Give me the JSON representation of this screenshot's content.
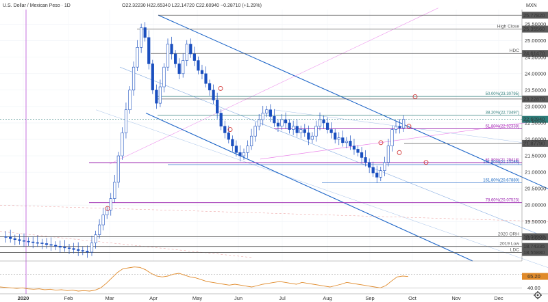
{
  "header": {
    "symbol": "U.S. Dollar / Mexican Peso · 1D",
    "ohlc": "O22.32230 H22.65340 L22.14720 C22.60940 −0.28710 (+1.29%)"
  },
  "chart_data": {
    "type": "candlestick",
    "currency": "MXN",
    "title": "U.S. Dollar / Mexican Peso · 1D",
    "ylim": [
      18.3,
      25.95
    ],
    "y_ticks": [
      19.0,
      19.5,
      20.0,
      20.5,
      21.0,
      21.5,
      22.0,
      22.5,
      23.0,
      23.5,
      24.0,
      24.5,
      25.0,
      25.5
    ],
    "x_labels": [
      "2020",
      "Feb",
      "Mar",
      "Apr",
      "May",
      "Jun",
      "Jul",
      "Aug",
      "Sep",
      "Oct",
      "Nov",
      "Dec"
    ],
    "last_price": "22.60940",
    "price_path": [
      19.04,
      19.03,
      18.98,
      18.95,
      18.92,
      18.9,
      18.88,
      18.86,
      18.85,
      18.83,
      18.8,
      18.78,
      18.75,
      18.72,
      18.7,
      18.68,
      18.65,
      18.62,
      18.6,
      18.57,
      18.85,
      19.1,
      19.4,
      19.7,
      19.85,
      20.2,
      20.7,
      21.5,
      22.2,
      22.9,
      23.5,
      24.2,
      24.8,
      25.4,
      25.1,
      24.3,
      23.5,
      23.1,
      23.6,
      24.2,
      24.9,
      24.6,
      24.3,
      24.0,
      24.4,
      24.9,
      24.6,
      24.4,
      24.1,
      24.0,
      23.7,
      23.5,
      23.2,
      22.8,
      22.4,
      22.2,
      22.0,
      21.8,
      21.6,
      21.5,
      21.6,
      21.8,
      22.1,
      22.4,
      22.6,
      22.8,
      22.9,
      22.7,
      22.5,
      22.4,
      22.6,
      22.5,
      22.3,
      22.4,
      22.2,
      22.3,
      22.2,
      22.0,
      22.1,
      22.4,
      22.6,
      22.5,
      22.3,
      22.2,
      22.0,
      22.05,
      21.9,
      21.95,
      21.8,
      21.7,
      21.6,
      21.45,
      21.3,
      21.15,
      20.98,
      20.85,
      21.05,
      21.3,
      21.8,
      22.3,
      22.4,
      22.35,
      22.61
    ],
    "levels": [
      {
        "value": 25.7782,
        "label": "25.77820"
      },
      {
        "value": 25.3556,
        "label": "25.35560",
        "note": "High Close"
      },
      {
        "value": 24.6147,
        "label": "24.61470",
        "note": "HDC"
      },
      {
        "value": 23.2287,
        "label": "23.22870"
      },
      {
        "value": 21.8779,
        "label": "21.87790"
      },
      {
        "value": 19.03903,
        "label": "19.03903",
        "note": "2020 ORH"
      },
      {
        "value": 18.74335,
        "label": "18.74335",
        "note": "2019 Low"
      },
      {
        "value": 18.5588,
        "label": "18.55880",
        "note": "LDC"
      }
    ],
    "fib_labels": [
      {
        "text": "50.00%(23.30795)",
        "value": 23.308,
        "color": "#2e7d7a"
      },
      {
        "text": "38.20%(22.73497)",
        "value": 22.735,
        "color": "#2e7d7a"
      },
      {
        "text": "61.80%(22.32338)",
        "value": 22.323,
        "color": "#9c27b0"
      },
      {
        "text": "61.80%(21.29418)",
        "value": 21.294,
        "color": "#9c27b0"
      },
      {
        "text": "161.80%(21.23165)",
        "value": 21.232,
        "color": "#1565c0"
      },
      {
        "text": "161.80%(20.67880)",
        "value": 20.679,
        "color": "#1565c0"
      },
      {
        "text": "78.60%(20.07523)",
        "value": 20.075,
        "color": "#9c27b0"
      }
    ],
    "rsi": {
      "last_label": "65.20",
      "axis_label": "40.00",
      "ylim": [
        30,
        90
      ],
      "values": [
        42,
        41,
        40,
        39,
        40,
        38,
        37,
        38,
        36,
        37,
        35,
        36,
        34,
        35,
        33,
        34,
        33,
        35,
        40,
        50,
        62,
        74,
        82,
        84,
        86,
        85,
        80,
        72,
        66,
        64,
        66,
        70,
        72,
        68,
        64,
        62,
        58,
        54,
        52,
        50,
        48,
        46,
        48,
        46,
        44,
        42,
        45,
        48,
        50,
        52,
        54,
        52,
        50,
        48,
        52,
        50,
        48,
        46,
        44,
        42,
        45,
        48,
        52,
        50,
        48,
        46,
        44,
        42,
        40,
        45,
        55,
        64,
        66,
        65
      ]
    }
  },
  "right_axis": {
    "currency_label": "MXN",
    "level_labels": {
      "high_close": "High Close",
      "hdc": "HDC",
      "orh": "2020 ORH",
      "low2019": "2019 Low",
      "ldc": "LDC"
    }
  },
  "colors": {
    "channel": "#1e66c8",
    "fib_teal": "#2e7d7a",
    "fib_purple": "#9c27b0",
    "level_gray": "#555555",
    "last_price_bg": "#2e7d7a",
    "candle": "#1a4fbf"
  },
  "footer": {
    "settings_icon": "gear-icon"
  }
}
